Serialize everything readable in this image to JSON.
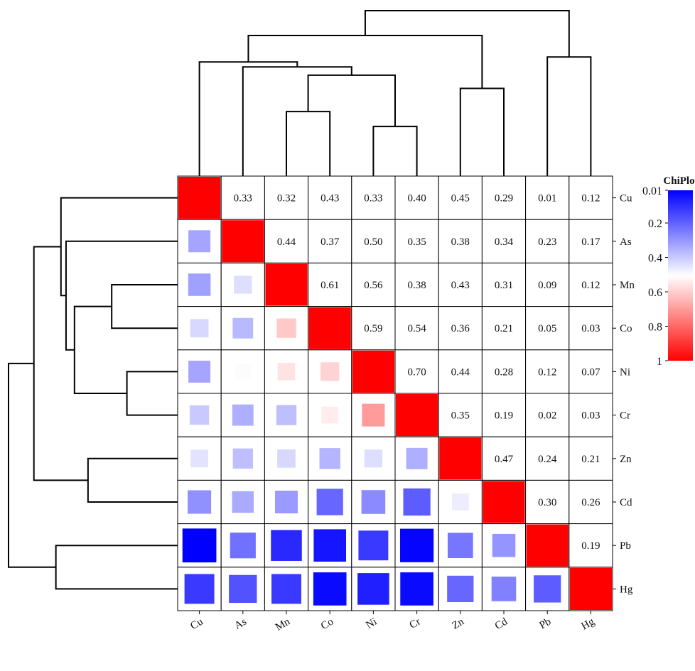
{
  "chart_data": {
    "type": "heatmap",
    "legend_title": "ChiPlot",
    "labels": [
      "Cu",
      "As",
      "Mn",
      "Co",
      "Ni",
      "Cr",
      "Zn",
      "Cd",
      "Pb",
      "Hg"
    ],
    "matrix": [
      [
        1.0,
        0.33,
        0.32,
        0.43,
        0.33,
        0.4,
        0.45,
        0.29,
        0.01,
        0.12
      ],
      [
        0.33,
        1.0,
        0.44,
        0.37,
        0.5,
        0.35,
        0.38,
        0.34,
        0.23,
        0.17
      ],
      [
        0.32,
        0.44,
        1.0,
        0.61,
        0.56,
        0.38,
        0.43,
        0.31,
        0.09,
        0.12
      ],
      [
        0.43,
        0.37,
        0.61,
        1.0,
        0.59,
        0.54,
        0.36,
        0.21,
        0.05,
        0.03
      ],
      [
        0.33,
        0.5,
        0.56,
        0.59,
        1.0,
        0.7,
        0.44,
        0.28,
        0.12,
        0.07
      ],
      [
        0.4,
        0.35,
        0.38,
        0.54,
        0.7,
        1.0,
        0.35,
        0.19,
        0.02,
        0.03
      ],
      [
        0.45,
        0.38,
        0.43,
        0.36,
        0.44,
        0.35,
        1.0,
        0.47,
        0.24,
        0.21
      ],
      [
        0.29,
        0.34,
        0.31,
        0.21,
        0.28,
        0.19,
        0.47,
        1.0,
        0.3,
        0.26
      ],
      [
        0.01,
        0.23,
        0.09,
        0.05,
        0.12,
        0.02,
        0.24,
        0.3,
        1.0,
        0.19
      ],
      [
        0.12,
        0.17,
        0.12,
        0.03,
        0.07,
        0.03,
        0.21,
        0.26,
        0.19,
        1.0
      ]
    ],
    "upper_triangle": "values",
    "lower_triangle": "squares",
    "diagonal_fill": "#ff0000",
    "colorbar": {
      "range": [
        0.01,
        1
      ],
      "tick_labels": [
        "0.01",
        "0.2",
        "0.4",
        "0.6",
        "0.8",
        "1"
      ],
      "tick_values": [
        0.01,
        0.2,
        0.4,
        0.6,
        0.8,
        1
      ],
      "colors": {
        "low": "#0000ff",
        "mid": "#ffffff",
        "high": "#ff0000"
      },
      "placement": "right"
    },
    "dendrogram": {
      "placement": [
        "top",
        "left"
      ],
      "merges": [
        {
          "a": 4,
          "b": 5,
          "height": 0.3
        },
        {
          "a": 2,
          "b": 3,
          "height": 0.39
        },
        {
          "a": "c0",
          "b": "c1",
          "height": 0.61
        },
        {
          "a": 6,
          "b": 7,
          "height": 0.53
        },
        {
          "a": 8,
          "b": 9,
          "height": 0.72
        },
        {
          "a": 1,
          "b": "c2",
          "height": 0.66
        },
        {
          "a": 0,
          "b": "c5",
          "height": 0.69
        },
        {
          "a": "c6",
          "b": "c3",
          "height": 0.85
        },
        {
          "a": "c7",
          "b": "c4",
          "height": 1.0
        }
      ]
    }
  }
}
